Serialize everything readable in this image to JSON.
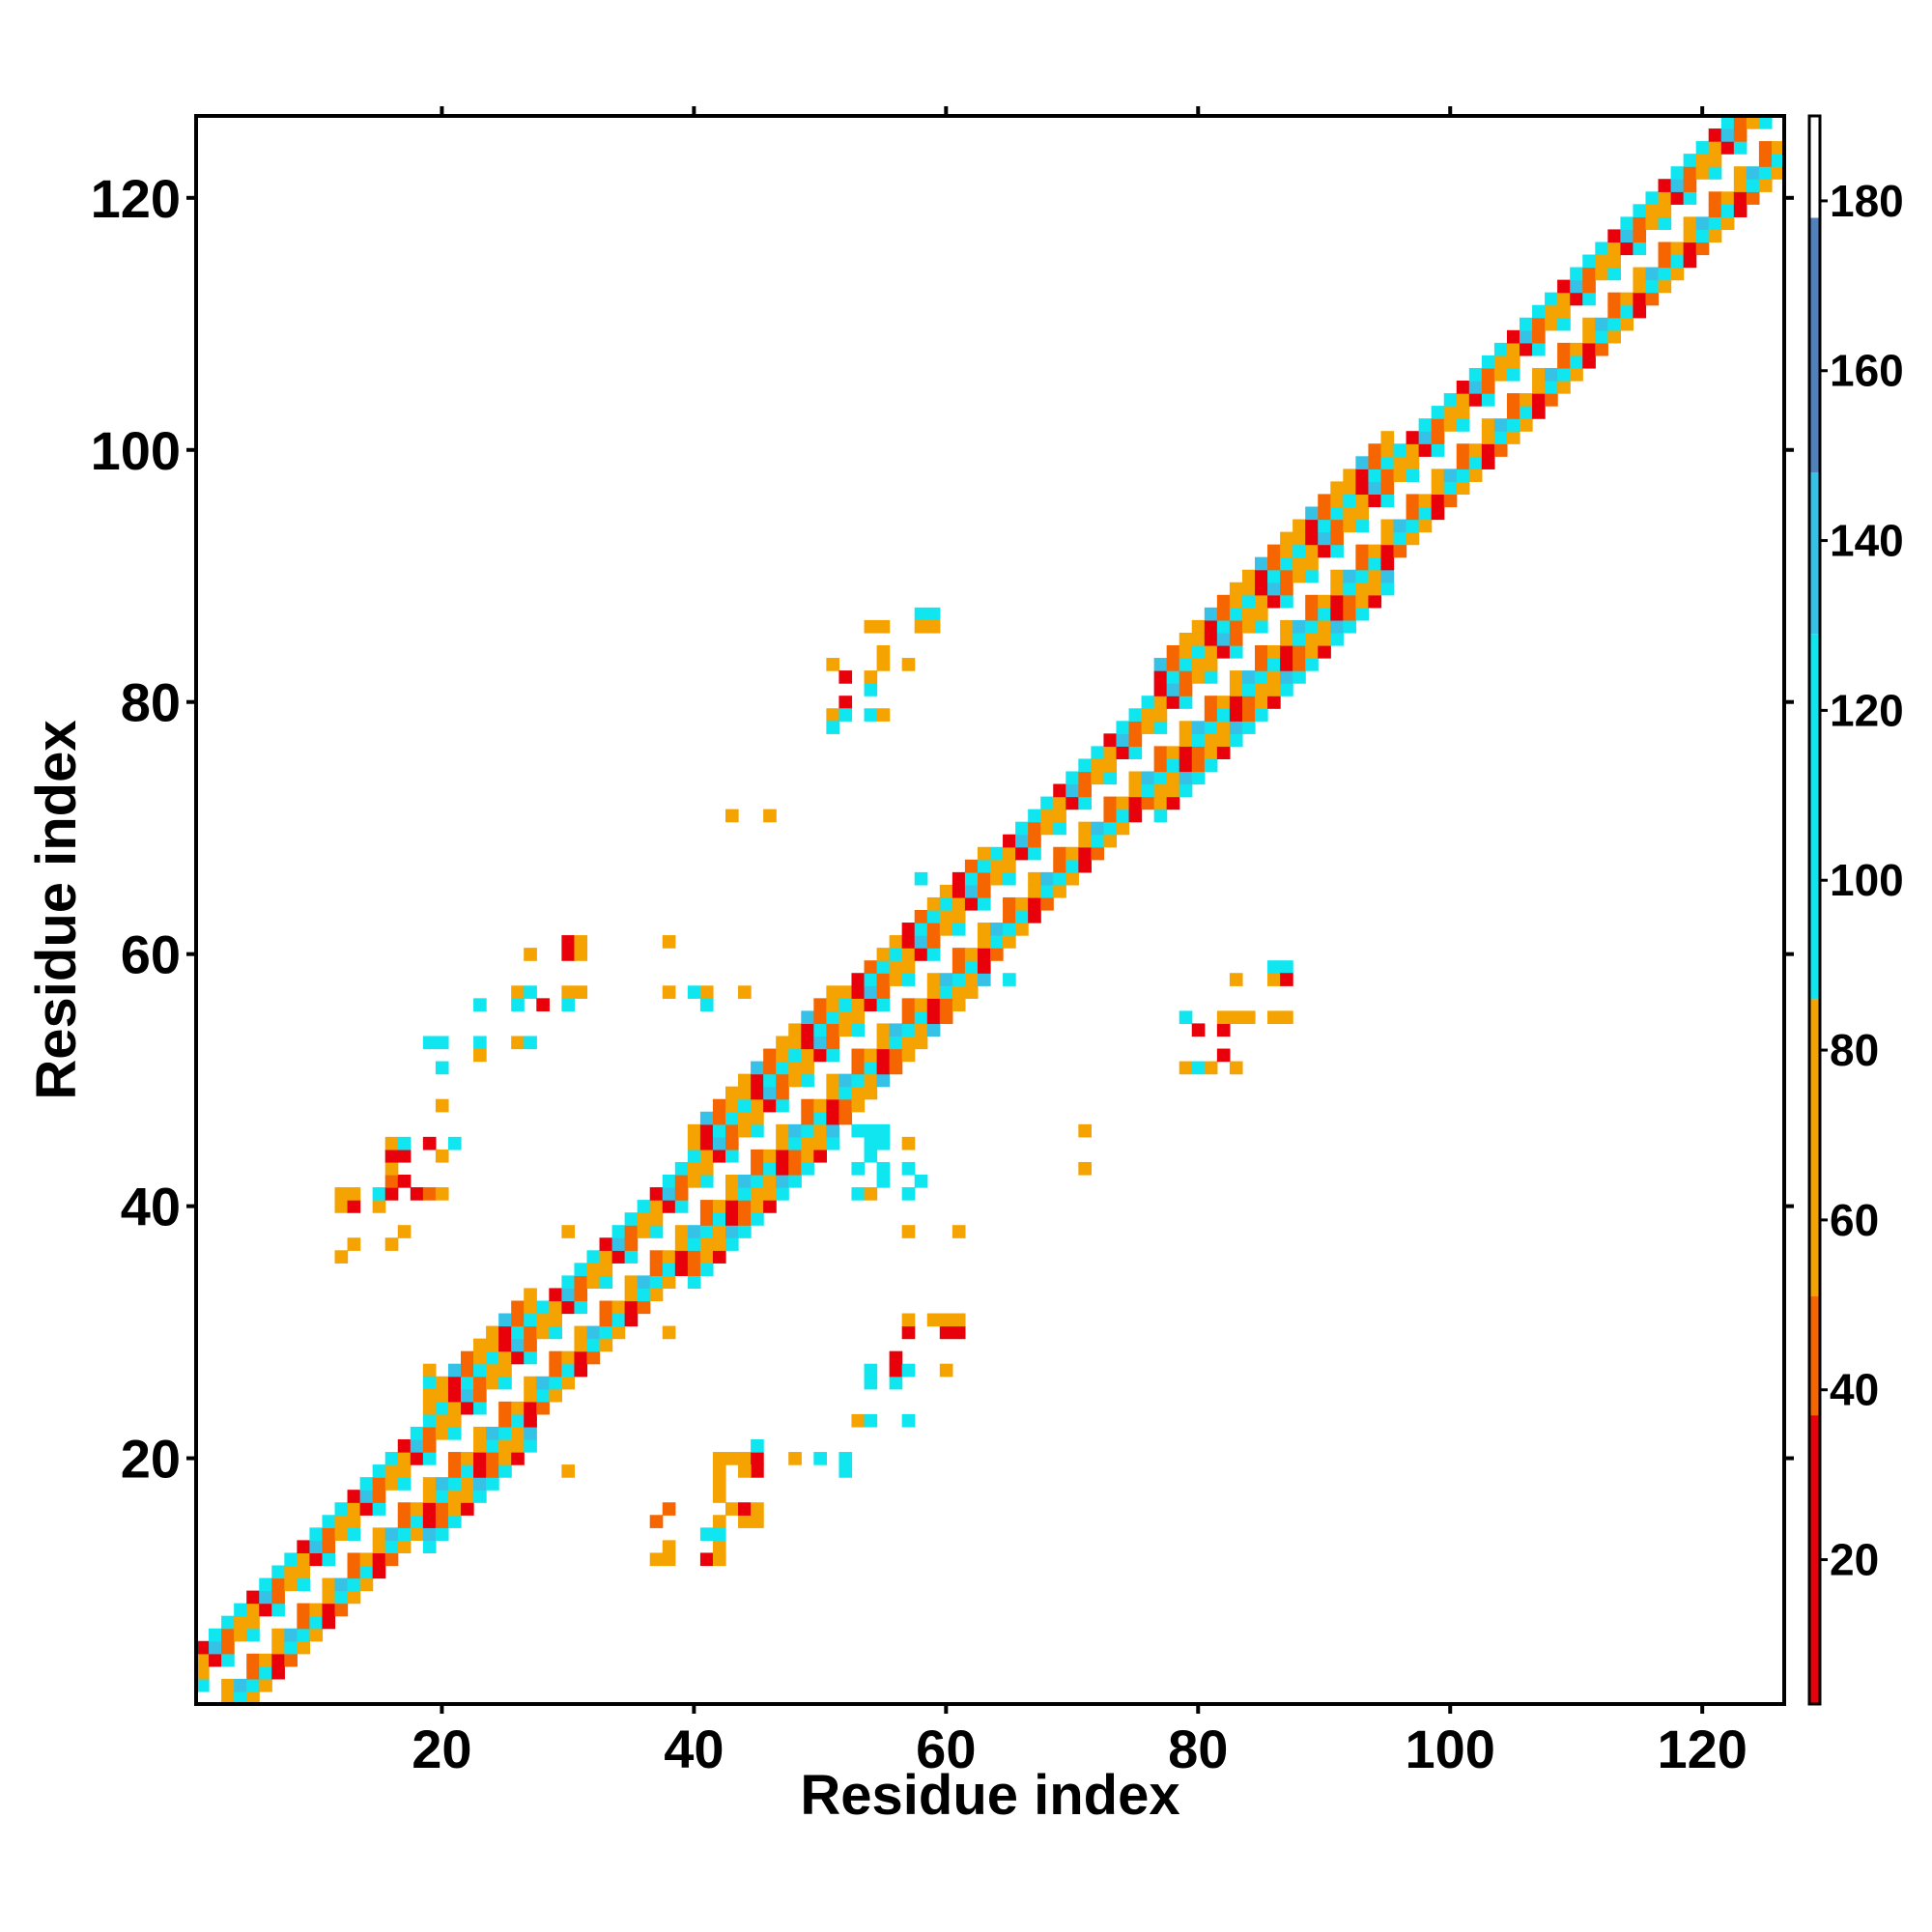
{
  "chart_data": {
    "type": "heatmap",
    "title": "",
    "xlabel": "Residue index",
    "ylabel": "Residue index",
    "xlim": [
      0.5,
      126.5
    ],
    "ylim": [
      0.5,
      126.5
    ],
    "x_ticks": [
      20,
      40,
      60,
      80,
      100,
      120
    ],
    "y_ticks": [
      20,
      40,
      60,
      80,
      100,
      120
    ],
    "colorbar": {
      "range": [
        3,
        190
      ],
      "ticks": [
        20,
        40,
        60,
        80,
        100,
        120,
        140,
        160,
        180
      ],
      "bands": [
        {
          "from": 3,
          "to": 37,
          "color": "#e8000a"
        },
        {
          "from": 37,
          "to": 51,
          "color": "#f56600"
        },
        {
          "from": 51,
          "to": 86,
          "color": "#f4a300"
        },
        {
          "from": 86,
          "to": 129,
          "color": "#10e6f0"
        },
        {
          "from": 129,
          "to": 148,
          "color": "#35c2e6"
        },
        {
          "from": 148,
          "to": 178,
          "color": "#5081bb"
        },
        {
          "from": 178,
          "to": 190,
          "color": "#ffffff"
        }
      ]
    },
    "grid": false,
    "legend": "colorbar-right",
    "diagonal_band": {
      "segments": [
        {
          "from": 1,
          "to": 18,
          "halfwidth": 4
        },
        {
          "from": 18,
          "to": 27,
          "halfwidth": 6
        },
        {
          "from": 27,
          "to": 39,
          "halfwidth": 4
        },
        {
          "from": 39,
          "to": 51,
          "halfwidth": 6
        },
        {
          "from": 51,
          "to": 63,
          "halfwidth": 5
        },
        {
          "from": 63,
          "to": 76,
          "halfwidth": 4
        },
        {
          "from": 76,
          "to": 95,
          "halfwidth": 6
        },
        {
          "from": 95,
          "to": 126,
          "halfwidth": 4
        }
      ],
      "palette": [
        20,
        44,
        70,
        100,
        72,
        30,
        110,
        66,
        46,
        104,
        140,
        60
      ],
      "empty_on_diagonal": true
    },
    "off_diagonal_contacts": [
      [
        12,
        40,
        70
      ],
      [
        12,
        41,
        70
      ],
      [
        13,
        40,
        20
      ],
      [
        13,
        41,
        66
      ],
      [
        12,
        36,
        70
      ],
      [
        13,
        37,
        70
      ],
      [
        16,
        37,
        66
      ],
      [
        17,
        38,
        70
      ],
      [
        15,
        40,
        66
      ],
      [
        15,
        41,
        110
      ],
      [
        16,
        41,
        20
      ],
      [
        16,
        42,
        44
      ],
      [
        17,
        42,
        20
      ],
      [
        18,
        41,
        20
      ],
      [
        19,
        41,
        44
      ],
      [
        20,
        41,
        70
      ],
      [
        16,
        43,
        70
      ],
      [
        16,
        44,
        20
      ],
      [
        17,
        44,
        20
      ],
      [
        16,
        45,
        70
      ],
      [
        17,
        45,
        100
      ],
      [
        19,
        45,
        20
      ],
      [
        20,
        44,
        70
      ],
      [
        21,
        45,
        100
      ],
      [
        19,
        53,
        104
      ],
      [
        20,
        53,
        110
      ],
      [
        20,
        51,
        110
      ],
      [
        20,
        48,
        70
      ],
      [
        23,
        56,
        100
      ],
      [
        23,
        53,
        110
      ],
      [
        23,
        52,
        70
      ],
      [
        26,
        53,
        70
      ],
      [
        27,
        53,
        100
      ],
      [
        26,
        56,
        100
      ],
      [
        26,
        57,
        70
      ],
      [
        27,
        57,
        104
      ],
      [
        28,
        56,
        20
      ],
      [
        27,
        60,
        70
      ],
      [
        30,
        56,
        104
      ],
      [
        30,
        57,
        70
      ],
      [
        30,
        60,
        20
      ],
      [
        30,
        61,
        20
      ],
      [
        31,
        61,
        70
      ],
      [
        31,
        57,
        70
      ],
      [
        31,
        60,
        66
      ],
      [
        38,
        61,
        70
      ],
      [
        38,
        57,
        70
      ],
      [
        40,
        57,
        104
      ],
      [
        41,
        56,
        100
      ],
      [
        41,
        57,
        70
      ],
      [
        44,
        57,
        70
      ],
      [
        43,
        71,
        70
      ],
      [
        46,
        71,
        70
      ],
      [
        51,
        83,
        70
      ],
      [
        52,
        82,
        20
      ],
      [
        51,
        79,
        70
      ],
      [
        51,
        78,
        100
      ],
      [
        54,
        81,
        100
      ],
      [
        54,
        82,
        66
      ],
      [
        55,
        83,
        70
      ],
      [
        55,
        84,
        70
      ],
      [
        54,
        86,
        70
      ],
      [
        55,
        86,
        70
      ],
      [
        54,
        79,
        100
      ],
      [
        55,
        79,
        70
      ],
      [
        57,
        83,
        70
      ],
      [
        58,
        87,
        104
      ],
      [
        59,
        87,
        104
      ],
      [
        58,
        86,
        70
      ],
      [
        59,
        86,
        70
      ],
      [
        52,
        80,
        20
      ],
      [
        52,
        79,
        100
      ],
      [
        58,
        66,
        104
      ],
      [
        65,
        58,
        104
      ],
      [
        71,
        46,
        70
      ],
      [
        71,
        43,
        70
      ],
      [
        79,
        55,
        100
      ],
      [
        80,
        54,
        20
      ],
      [
        79,
        51,
        70
      ],
      [
        80,
        51,
        104
      ],
      [
        81,
        51,
        70
      ],
      [
        82,
        52,
        20
      ],
      [
        83,
        51,
        70
      ],
      [
        82,
        54,
        20
      ],
      [
        83,
        55,
        70
      ],
      [
        82,
        55,
        70
      ],
      [
        84,
        55,
        66
      ],
      [
        83,
        58,
        70
      ],
      [
        86,
        59,
        104
      ],
      [
        87,
        59,
        100
      ],
      [
        86,
        58,
        70
      ],
      [
        87,
        58,
        20
      ],
      [
        86,
        55,
        70
      ],
      [
        87,
        55,
        70
      ],
      [
        53,
        46,
        104
      ],
      [
        54,
        46,
        110
      ],
      [
        55,
        46,
        100
      ],
      [
        53,
        43,
        100
      ],
      [
        54,
        45,
        110
      ],
      [
        54,
        44,
        100
      ],
      [
        55,
        45,
        100
      ],
      [
        55,
        43,
        110
      ],
      [
        55,
        42,
        110
      ],
      [
        53,
        41,
        100
      ],
      [
        54,
        41,
        70
      ],
      [
        57,
        43,
        110
      ],
      [
        57,
        41,
        100
      ],
      [
        58,
        42,
        110
      ],
      [
        57,
        45,
        70
      ],
      [
        57,
        38,
        70
      ],
      [
        61,
        38,
        70
      ],
      [
        37,
        12,
        70
      ],
      [
        38,
        12,
        70
      ],
      [
        38,
        13,
        70
      ],
      [
        37,
        15,
        44
      ],
      [
        38,
        16,
        44
      ],
      [
        41,
        12,
        20
      ],
      [
        42,
        12,
        70
      ],
      [
        42,
        13,
        70
      ],
      [
        41,
        14,
        100
      ],
      [
        42,
        14,
        110
      ],
      [
        42,
        15,
        70
      ],
      [
        43,
        16,
        70
      ],
      [
        44,
        15,
        70
      ],
      [
        45,
        15,
        70
      ],
      [
        44,
        16,
        20
      ],
      [
        45,
        16,
        70
      ],
      [
        42,
        17,
        70
      ],
      [
        42,
        18,
        70
      ],
      [
        42,
        19,
        66
      ],
      [
        42,
        20,
        70
      ],
      [
        43,
        20,
        66
      ],
      [
        44,
        20,
        70
      ],
      [
        45,
        20,
        20
      ],
      [
        45,
        21,
        100
      ],
      [
        45,
        19,
        20
      ],
      [
        44,
        19,
        70
      ],
      [
        48,
        20,
        70
      ],
      [
        50,
        20,
        110
      ],
      [
        52,
        20,
        100
      ],
      [
        52,
        19,
        110
      ],
      [
        53,
        23,
        70
      ],
      [
        54,
        23,
        100
      ],
      [
        57,
        23,
        100
      ],
      [
        54,
        27,
        100
      ],
      [
        54,
        26,
        100
      ],
      [
        56,
        26,
        110
      ],
      [
        56,
        27,
        20
      ],
      [
        57,
        27,
        100
      ],
      [
        56,
        28,
        20
      ],
      [
        57,
        30,
        20
      ],
      [
        57,
        31,
        70
      ],
      [
        60,
        30,
        20
      ],
      [
        60,
        31,
        70
      ],
      [
        59,
        31,
        70
      ],
      [
        61,
        30,
        20
      ],
      [
        61,
        31,
        70
      ],
      [
        60,
        27,
        70
      ],
      [
        38,
        30,
        70
      ],
      [
        30,
        19,
        70
      ],
      [
        19,
        27,
        70
      ],
      [
        19,
        26,
        100
      ],
      [
        30,
        38,
        70
      ]
    ]
  }
}
